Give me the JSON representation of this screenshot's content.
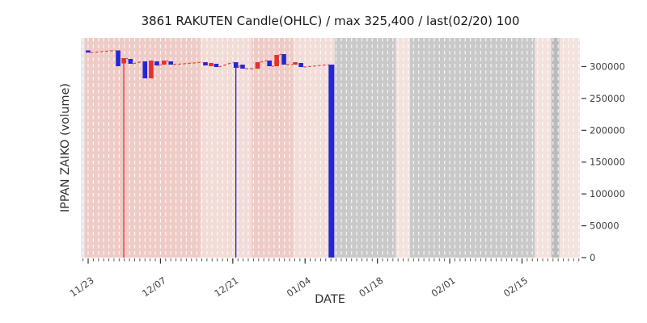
{
  "title": "3861 RAKUTEN Candle(OHLC) / max 325,400 / last(02/20) 100",
  "chart_data": {
    "type": "candlestick",
    "title": "3861 RAKUTEN Candle(OHLC) / max 325,400 / last(02/20) 100",
    "xlabel": "DATE",
    "ylabel": "IPPAN ZAIKO (volume)",
    "max_value": 325400,
    "max_label": "max 325,400",
    "last_label": "last(02/20) 100",
    "last_value": 100,
    "legend_position": "none",
    "grid": {
      "color": "#ffffff",
      "dash": "4.5 3.5",
      "interval_days": 1,
      "opacity": 0.85
    },
    "up_color": "#e62e2e",
    "down_color": "#2525d6",
    "connector_color": "#e8403a",
    "tick_color": "#555555",
    "tick_label_color": "#404040",
    "xlim_days": [
      -1.41,
      95.2
    ],
    "ylim": [
      0,
      345000
    ],
    "x_tick_labels": [
      "11/23",
      "12/07",
      "12/21",
      "01/04",
      "01/18",
      "02/01",
      "02/15"
    ],
    "x_tick_days": [
      0,
      14,
      28,
      42,
      56,
      70,
      84
    ],
    "y_ticks": [
      0,
      50000,
      100000,
      150000,
      200000,
      250000,
      300000
    ],
    "y_tick_labels": [
      "0",
      "50000",
      "100000",
      "150000",
      "200000",
      "250000",
      "300000"
    ],
    "background_bands": [
      {
        "day_start": -1.41,
        "day_end": -0.7,
        "color": "#e8e8e8"
      },
      {
        "day_start": -0.7,
        "day_end": 21.75,
        "color": "#eecbc6"
      },
      {
        "day_start": 21.75,
        "day_end": 31.6,
        "color": "#f2dcd7"
      },
      {
        "day_start": 31.6,
        "day_end": 39.7,
        "color": "#eecbc6"
      },
      {
        "day_start": 39.7,
        "day_end": 47.7,
        "color": "#f2ddd8"
      },
      {
        "day_start": 47.7,
        "day_end": 59.6,
        "color": "#c9c9c9"
      },
      {
        "day_start": 59.6,
        "day_end": 62.3,
        "color": "#f3e2de"
      },
      {
        "day_start": 62.3,
        "day_end": 86.5,
        "color": "#c9c9c9"
      },
      {
        "day_start": 86.5,
        "day_end": 89.7,
        "color": "#f3e2de"
      },
      {
        "day_start": 89.7,
        "day_end": 91.2,
        "color": "#bbbbbb"
      },
      {
        "day_start": 91.2,
        "day_end": 95.2,
        "color": "#f3e2de"
      }
    ],
    "candles": [
      {
        "date": "11/23",
        "day": 0.0,
        "open": 325400,
        "high": 325400,
        "low": 322000,
        "close": 322000,
        "dir": "down"
      },
      {
        "date": "11/29",
        "day": 5.8,
        "open": 325400,
        "high": 325400,
        "low": 300600,
        "close": 300600,
        "dir": "down"
      },
      {
        "date": "11/30",
        "day": 6.9,
        "open": 305000,
        "high": 313300,
        "low": 0,
        "close": 313300,
        "dir": "up"
      },
      {
        "date": "12/01",
        "day": 8.2,
        "open": 312000,
        "high": 312000,
        "low": 304400,
        "close": 304400,
        "dir": "down"
      },
      {
        "date": "12/05",
        "day": 11.0,
        "open": 308200,
        "high": 308200,
        "low": 281600,
        "close": 281600,
        "dir": "down"
      },
      {
        "date": "12/06",
        "day": 12.2,
        "open": 281600,
        "high": 309500,
        "low": 281600,
        "close": 309500,
        "dir": "up"
      },
      {
        "date": "12/07",
        "day": 13.3,
        "open": 308200,
        "high": 308200,
        "low": 301800,
        "close": 301800,
        "dir": "down"
      },
      {
        "date": "12/08",
        "day": 14.7,
        "open": 303100,
        "high": 309500,
        "low": 303100,
        "close": 309500,
        "dir": "up"
      },
      {
        "date": "12/09",
        "day": 16.0,
        "open": 308200,
        "high": 308200,
        "low": 303100,
        "close": 303100,
        "dir": "down"
      },
      {
        "date": "12/15",
        "day": 22.7,
        "open": 306900,
        "high": 306900,
        "low": 301800,
        "close": 301800,
        "dir": "down"
      },
      {
        "date": "12/16",
        "day": 23.8,
        "open": 300600,
        "high": 305700,
        "low": 300600,
        "close": 305700,
        "dir": "up"
      },
      {
        "date": "12/17",
        "day": 24.8,
        "open": 304400,
        "high": 304400,
        "low": 299300,
        "close": 299300,
        "dir": "down"
      },
      {
        "date": "12/21",
        "day": 28.6,
        "open": 306900,
        "high": 306900,
        "low": 0,
        "close": 298100,
        "dir": "down"
      },
      {
        "date": "12/22",
        "day": 29.9,
        "open": 303100,
        "high": 303100,
        "low": 296800,
        "close": 296800,
        "dir": "down"
      },
      {
        "date": "12/26",
        "day": 32.8,
        "open": 296800,
        "high": 306900,
        "low": 296800,
        "close": 306900,
        "dir": "up"
      },
      {
        "date": "12/28",
        "day": 35.1,
        "open": 309500,
        "high": 309500,
        "low": 300600,
        "close": 300600,
        "dir": "down"
      },
      {
        "date": "12/29",
        "day": 36.5,
        "open": 300600,
        "high": 318300,
        "low": 300600,
        "close": 318300,
        "dir": "up"
      },
      {
        "date": "12/31",
        "day": 37.9,
        "open": 319600,
        "high": 319600,
        "low": 303100,
        "close": 303100,
        "dir": "down"
      },
      {
        "date": "01/02",
        "day": 40.1,
        "open": 303100,
        "high": 306900,
        "low": 303100,
        "close": 306900,
        "dir": "up"
      },
      {
        "date": "01/03",
        "day": 41.2,
        "open": 305700,
        "high": 305700,
        "low": 299300,
        "close": 299300,
        "dir": "down"
      },
      {
        "date": "01/09",
        "day": 47.1,
        "open": 303100,
        "high": 303100,
        "low": 100,
        "close": 100,
        "dir": "down",
        "wide": true
      }
    ]
  }
}
